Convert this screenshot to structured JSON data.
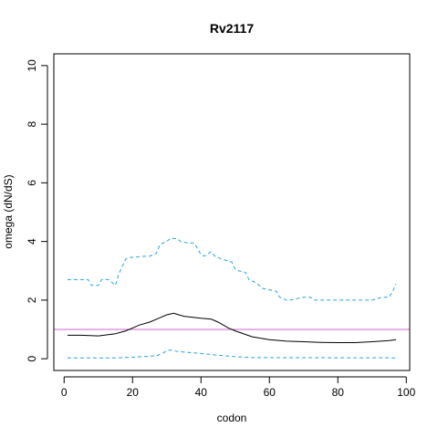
{
  "chart_data": {
    "type": "line",
    "title": "Rv2117",
    "xlabel": "codon",
    "ylabel": "omega (dN/dS)",
    "xlim": [
      -3,
      101
    ],
    "ylim": [
      -0.4,
      10.4
    ],
    "xticks": [
      0,
      20,
      40,
      60,
      80,
      100
    ],
    "yticks": [
      0,
      2,
      4,
      6,
      8,
      10
    ],
    "grid": false,
    "series": [
      {
        "role": "upper",
        "color": "#29a3e0",
        "dash": "dashed",
        "x": [
          1,
          7,
          8,
          10,
          11,
          13,
          14,
          15,
          16,
          18,
          19,
          24,
          25,
          27,
          28,
          30,
          31,
          33,
          34,
          36,
          38,
          40,
          41,
          43,
          44,
          46,
          49,
          50,
          51,
          53,
          54,
          56,
          58,
          62,
          63,
          65,
          66,
          70,
          72,
          73,
          90,
          93,
          95,
          96,
          97
        ],
        "y": [
          2.7,
          2.7,
          2.5,
          2.5,
          2.7,
          2.7,
          2.6,
          2.5,
          2.9,
          3.4,
          3.45,
          3.5,
          3.5,
          3.6,
          3.9,
          4.0,
          4.1,
          4.1,
          4.0,
          3.95,
          3.95,
          3.55,
          3.5,
          3.65,
          3.5,
          3.4,
          3.3,
          3.05,
          3.0,
          2.95,
          2.7,
          2.6,
          2.4,
          2.3,
          2.1,
          2.0,
          2.0,
          2.1,
          2.1,
          2.0,
          2.0,
          2.1,
          2.1,
          2.3,
          2.55
        ]
      },
      {
        "role": "mean",
        "color": "#000000",
        "dash": "solid",
        "x": [
          1,
          5,
          10,
          15,
          18,
          20,
          22,
          25,
          28,
          30,
          32,
          35,
          40,
          43,
          45,
          48,
          50,
          55,
          60,
          65,
          70,
          75,
          80,
          85,
          90,
          95,
          97
        ],
        "y": [
          0.8,
          0.8,
          0.78,
          0.85,
          0.95,
          1.05,
          1.15,
          1.25,
          1.4,
          1.5,
          1.55,
          1.45,
          1.38,
          1.35,
          1.25,
          1.05,
          0.95,
          0.75,
          0.65,
          0.6,
          0.58,
          0.56,
          0.55,
          0.55,
          0.58,
          0.62,
          0.65
        ]
      },
      {
        "role": "lower",
        "color": "#29a3e0",
        "dash": "dashed",
        "x": [
          1,
          15,
          20,
          24,
          27,
          29,
          30,
          31,
          33,
          36,
          40,
          45,
          50,
          55,
          97
        ],
        "y": [
          0.03,
          0.03,
          0.05,
          0.08,
          0.1,
          0.2,
          0.27,
          0.3,
          0.25,
          0.22,
          0.18,
          0.12,
          0.07,
          0.04,
          0.03
        ]
      }
    ],
    "reference_line": {
      "y": 1,
      "color": "#cc66cc"
    }
  }
}
